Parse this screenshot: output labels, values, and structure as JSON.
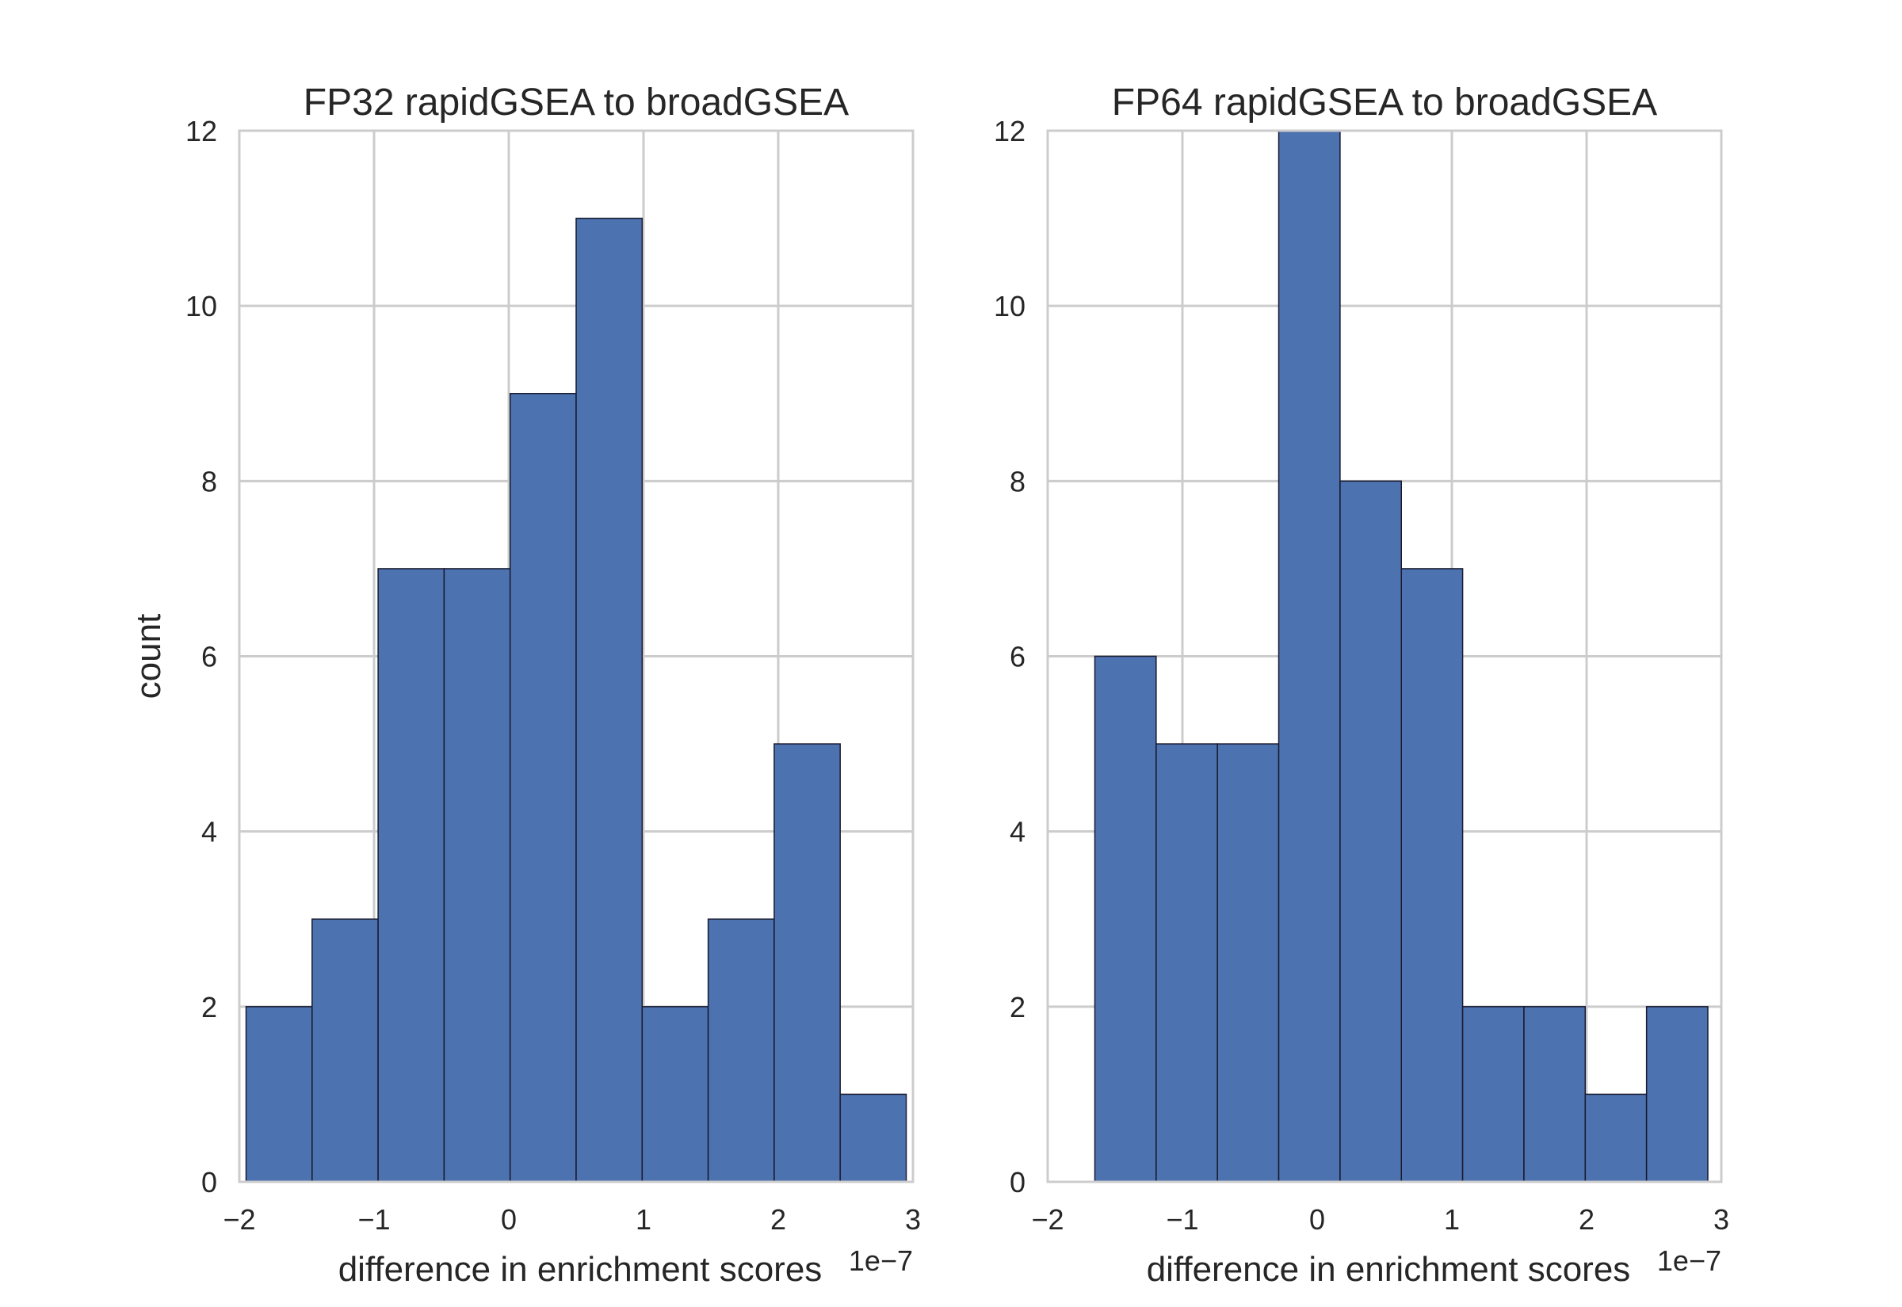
{
  "colors": {
    "bar_fill": "#4c72b0",
    "bar_edge": "#1a1a2e",
    "grid": "#cccccc",
    "text": "#262626"
  },
  "chart_data": [
    {
      "type": "bar",
      "title": "FP32 rapidGSEA to broadGSEA",
      "xlabel": "difference in enrichment scores",
      "x_offset_label": "1e−7",
      "ylabel": "count",
      "xlim": [
        -2,
        3
      ],
      "ylim": [
        0,
        12
      ],
      "xticks": [
        -2,
        -1,
        0,
        1,
        2,
        3
      ],
      "xtick_labels": [
        "−2",
        "−1",
        "0",
        "1",
        "2",
        "3"
      ],
      "yticks": [
        0,
        2,
        4,
        6,
        8,
        10,
        12
      ],
      "ytick_labels": [
        "0",
        "2",
        "4",
        "6",
        "8",
        "10",
        "12"
      ],
      "grid": true,
      "bin_edges": [
        -1.95,
        -1.46,
        -0.97,
        -0.48,
        0.01,
        0.5,
        0.99,
        1.48,
        1.97,
        2.46,
        2.95
      ],
      "values": [
        2,
        3,
        7,
        7,
        9,
        11,
        2,
        3,
        5,
        1
      ]
    },
    {
      "type": "bar",
      "title": "FP64 rapidGSEA to broadGSEA",
      "xlabel": "difference in enrichment scores",
      "x_offset_label": "1e−7",
      "ylabel": "",
      "xlim": [
        -2,
        3
      ],
      "ylim": [
        0,
        12
      ],
      "xticks": [
        -2,
        -1,
        0,
        1,
        2,
        3
      ],
      "xtick_labels": [
        "−2",
        "−1",
        "0",
        "1",
        "2",
        "3"
      ],
      "yticks": [
        0,
        2,
        4,
        6,
        8,
        10,
        12
      ],
      "ytick_labels": [
        "0",
        "2",
        "4",
        "6",
        "8",
        "10",
        "12"
      ],
      "grid": true,
      "bin_edges": [
        -1.65,
        -1.195,
        -0.74,
        -0.285,
        0.17,
        0.625,
        1.08,
        1.535,
        1.99,
        2.445,
        2.9
      ],
      "values": [
        6,
        5,
        5,
        12,
        8,
        7,
        2,
        2,
        1,
        2
      ]
    }
  ]
}
